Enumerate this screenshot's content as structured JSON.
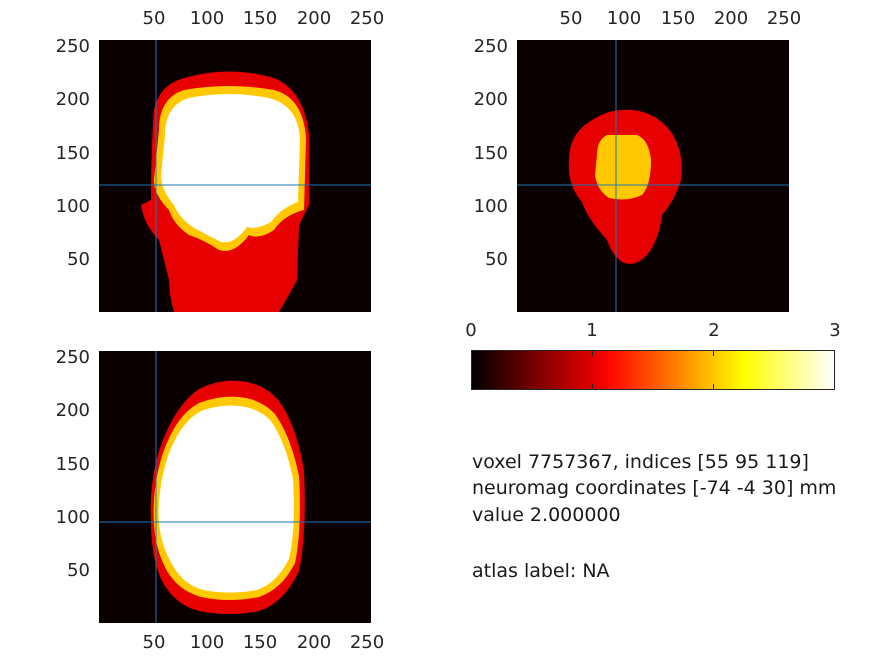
{
  "panels": {
    "coronal": {
      "x_ticks": [
        "50",
        "100",
        "150",
        "200",
        "250"
      ],
      "y_ticks": [
        "250",
        "200",
        "150",
        "100",
        "50"
      ],
      "crosshair": {
        "x": 55,
        "y": 119
      }
    },
    "sagittal": {
      "x_ticks": [
        "50",
        "100",
        "150",
        "200",
        "250"
      ],
      "y_ticks": [
        "250",
        "200",
        "150",
        "100",
        "50"
      ],
      "crosshair": {
        "x": 95,
        "y": 119
      }
    },
    "axial": {
      "x_ticks": [
        "50",
        "100",
        "150",
        "200",
        "250"
      ],
      "y_ticks": [
        "250",
        "200",
        "150",
        "100",
        "50"
      ],
      "crosshair": {
        "x": 55,
        "y": 95
      }
    }
  },
  "colorbar": {
    "ticks": [
      "0",
      "1",
      "2",
      "3"
    ],
    "range": [
      0,
      3
    ],
    "colormap": "hot"
  },
  "info": {
    "voxel_line": "voxel 7757367, indices [55 95 119]",
    "coords_line": "neuromag coordinates [-74 -4 30] mm",
    "value_line": "value 2.000000",
    "atlas_line": "atlas label: NA"
  },
  "colors": {
    "background": "#0a0000",
    "red": "#e60000",
    "yellow": "#ffc800",
    "white": "#ffffff",
    "crosshair": "#1f77b4"
  }
}
